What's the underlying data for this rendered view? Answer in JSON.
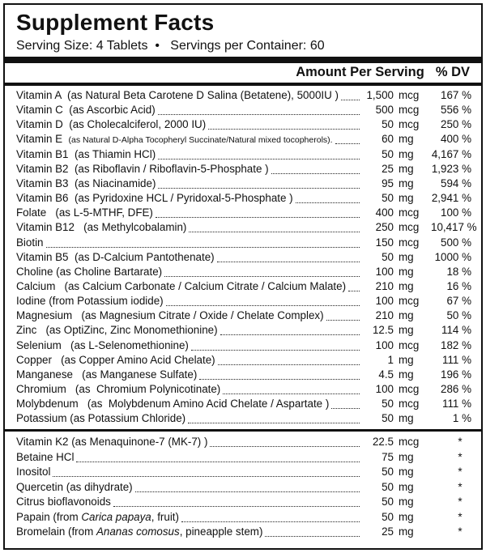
{
  "title": "Supplement Facts",
  "serving": "Serving Size: 4 Tablets  •   Servings per Container: 60",
  "header": {
    "amount": "Amount Per Serving",
    "dv": "% DV"
  },
  "groups": [
    [
      {
        "name": "Vitamin A  (as Natural Beta Carotene D Salina (Betatene), 5000IU )",
        "amount": "1,500",
        "unit": "mcg",
        "dv": "167 %"
      },
      {
        "name": "Vitamin C  (as Ascorbic Acid)",
        "amount": "500",
        "unit": "mcg",
        "dv": "556 %"
      },
      {
        "name": "Vitamin D  (as Cholecalciferol, 2000 IU)",
        "amount": "50",
        "unit": "mcg",
        "dv": "250 %"
      },
      {
        "name": "Vitamin E  ",
        "detail": "(as Natural D-Alpha Tocopheryl Succinate/Natural mixed tocopherols).",
        "amount": "60",
        "unit": "mg",
        "dv": "400 %"
      },
      {
        "name": "Vitamin B1  (as Thiamin HCl)",
        "amount": "50",
        "unit": "mg",
        "dv": "4,167 %"
      },
      {
        "name": "Vitamin B2  (as Riboflavin / Riboflavin-5-Phosphate )",
        "amount": "25",
        "unit": "mg",
        "dv": "1,923 %"
      },
      {
        "name": "Vitamin B3  (as Niacinamide)",
        "amount": "95",
        "unit": "mg",
        "dv": "594 %"
      },
      {
        "name": "Vitamin B6  (as Pyridoxine HCL / Pyridoxal-5-Phosphate )",
        "amount": "50",
        "unit": "mg",
        "dv": "2,941 %"
      },
      {
        "name": "Folate   (as L-5-MTHF, DFE)",
        "amount": "400",
        "unit": "mcg",
        "dv": "100 %"
      },
      {
        "name": "Vitamin B12   (as Methylcobalamin)",
        "amount": "250",
        "unit": "mcg",
        "dv": "10,417 %"
      },
      {
        "name": "Biotin",
        "amount": "150",
        "unit": "mcg",
        "dv": "500 %"
      },
      {
        "name": "Vitamin B5  (as D-Calcium Pantothenate)",
        "amount": "50",
        "unit": "mg",
        "dv": "1000 %"
      },
      {
        "name": "Choline (as Choline Bartarate)",
        "amount": "100",
        "unit": "mg",
        "dv": "18 %"
      },
      {
        "name": "Calcium   (as Calcium Carbonate / Calcium Citrate / Calcium Malate)",
        "amount": "210",
        "unit": "mg",
        "dv": "16 %"
      },
      {
        "name": "Iodine (from Potassium iodide)",
        "amount": "100",
        "unit": "mcg",
        "dv": "67 %"
      },
      {
        "name": "Magnesium   (as Magnesium Citrate / Oxide / Chelate Complex)",
        "amount": "210",
        "unit": "mg",
        "dv": "50 %"
      },
      {
        "name": "Zinc   (as OptiZinc, Zinc Monomethionine)",
        "amount": "12.5",
        "unit": "mg",
        "dv": "114 %"
      },
      {
        "name": "Selenium   (as L-Selenomethionine)",
        "amount": "100",
        "unit": "mcg",
        "dv": "182 %"
      },
      {
        "name": "Copper   (as Copper Amino Acid Chelate)",
        "amount": "1",
        "unit": "mg",
        "dv": "111 %"
      },
      {
        "name": "Manganese   (as Manganese Sulfate)",
        "amount": "4.5",
        "unit": "mg",
        "dv": "196 %"
      },
      {
        "name": "Chromium   (as  Chromium Polynicotinate)",
        "amount": "100",
        "unit": "mcg",
        "dv": "286 %"
      },
      {
        "name": "Molybdenum   (as  Molybdenum Amino Acid Chelate / Aspartate )",
        "amount": "50",
        "unit": "mcg",
        "dv": "111 %"
      },
      {
        "name": "Potassium (as Potassium Chloride)",
        "amount": "50",
        "unit": "mg",
        "dv": "1 %"
      }
    ],
    [
      {
        "name": "Vitamin K2 (as Menaquinone-7 (MK-7) )",
        "amount": "22.5",
        "unit": "mcg",
        "dv": "*"
      },
      {
        "name": "Betaine HCl",
        "amount": "75",
        "unit": "mg",
        "dv": "*"
      },
      {
        "name": "Inositol",
        "amount": "50",
        "unit": "mg",
        "dv": "*"
      },
      {
        "name": "Quercetin (as dihydrate)",
        "amount": "50",
        "unit": "mg",
        "dv": "*"
      },
      {
        "name": "Citrus bioflavonoids",
        "amount": "50",
        "unit": "mg",
        "dv": "*"
      },
      {
        "name": "Papain (from ",
        "italic": "Carica papaya",
        "rest": ", fruit)",
        "amount": "50",
        "unit": "mg",
        "dv": "*"
      },
      {
        "name": "Bromelain (from ",
        "italic": "Ananas comosus",
        "rest": ", pineapple stem)",
        "amount": "25",
        "unit": "mg",
        "dv": "*"
      }
    ]
  ]
}
